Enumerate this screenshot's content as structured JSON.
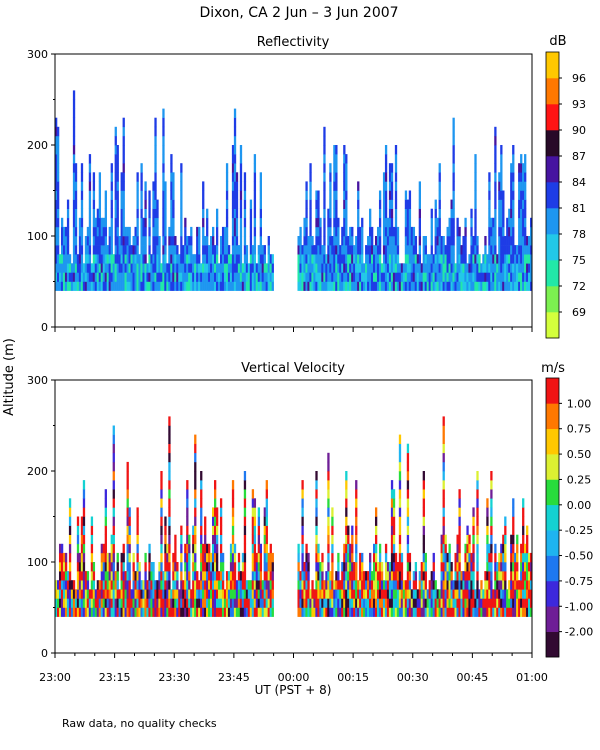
{
  "figure": {
    "title": "Dixon, CA  2 Jun –  3 Jun 2007",
    "ylabel": "Altitude (m)",
    "xlabel": "UT  (PST + 8)",
    "footnote": "Raw data, no quality checks"
  },
  "chart_data": [
    {
      "type": "heatmap",
      "title": "Reflectivity",
      "x_ticks": [
        "23:00",
        "23:15",
        "23:30",
        "23:45",
        "00:00",
        "00:15",
        "00:30",
        "00:45",
        "01:00"
      ],
      "y_ticks": [
        0,
        100,
        200,
        300
      ],
      "ylim": [
        0,
        300
      ],
      "xlim_minutes": [
        0,
        120
      ],
      "colorbar_unit": "dB",
      "colorbar_labels": [
        "69",
        "72",
        "75",
        "78",
        "81",
        "84",
        "87",
        "90",
        "93",
        "96"
      ],
      "colorbar_colors": [
        "#d4ff3c",
        "#7cf050",
        "#22e8a8",
        "#22c8e8",
        "#1e96f0",
        "#1e3ce6",
        "#4614a0",
        "#280a28",
        "#ff1414",
        "#ff7800",
        "#ffc800"
      ],
      "data_gap_minutes": [
        55,
        61
      ],
      "min_echo_altitude_m": 40
    },
    {
      "type": "heatmap",
      "title": "Vertical Velocity",
      "x_ticks": [
        "23:00",
        "23:15",
        "23:30",
        "23:45",
        "00:00",
        "00:15",
        "00:30",
        "00:45",
        "01:00"
      ],
      "y_ticks": [
        0,
        100,
        200,
        300
      ],
      "ylim": [
        0,
        300
      ],
      "xlim_minutes": [
        0,
        120
      ],
      "colorbar_unit": "m/s",
      "colorbar_labels": [
        "-2.00",
        "-1.00",
        "-0.75",
        "-0.50",
        "-0.25",
        "0.00",
        "0.25",
        "0.50",
        "0.75",
        "1.00"
      ],
      "colorbar_colors": [
        "#320a32",
        "#6e1e96",
        "#3c28dc",
        "#1e78f0",
        "#1eb4f0",
        "#14d2d2",
        "#28dc3c",
        "#dcf032",
        "#ffc800",
        "#ff7800",
        "#f01414"
      ],
      "data_gap_minutes": [
        55,
        61
      ],
      "min_echo_altitude_m": 40
    }
  ]
}
